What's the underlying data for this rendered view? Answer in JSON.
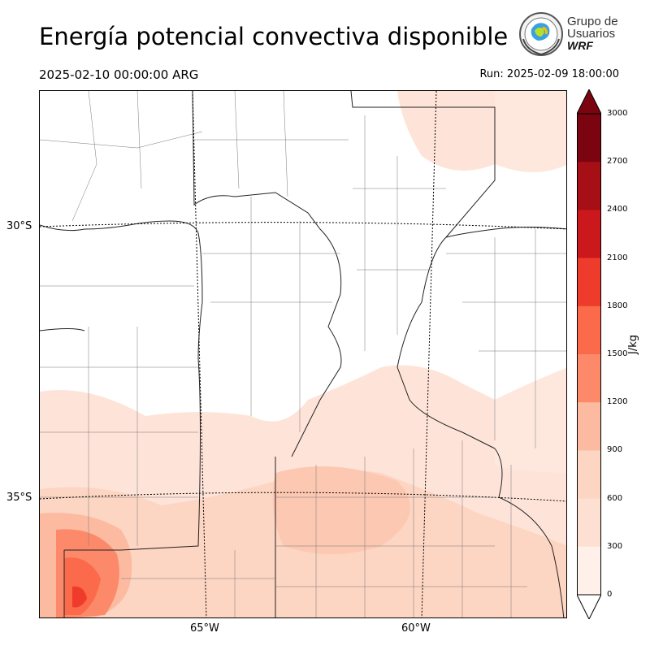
{
  "title": "Energía potencial convectiva disponible",
  "valid_time": "2025-02-10 00:00:00 ARG",
  "run_time": "Run: 2025-02-09 18:00:00",
  "logo": {
    "line1": "Grupo de",
    "line2": "Usuarios",
    "line3": "WRF"
  },
  "map": {
    "lat_labels": [
      "30°S",
      "35°S"
    ],
    "lon_labels": [
      "65°W",
      "60°W"
    ]
  },
  "colorbar": {
    "unit": "J/kg",
    "ticks": [
      "3000",
      "2700",
      "2400",
      "2100",
      "1800",
      "1500",
      "1200",
      "900",
      "600",
      "300",
      "0"
    ],
    "colors": [
      "#7a0510",
      "#a50f15",
      "#cb181d",
      "#ef3b2c",
      "#fb6a4a",
      "#fc8a6a",
      "#fcbba1",
      "#fdd5c3",
      "#fee0d2",
      "#fff0ea"
    ]
  }
}
